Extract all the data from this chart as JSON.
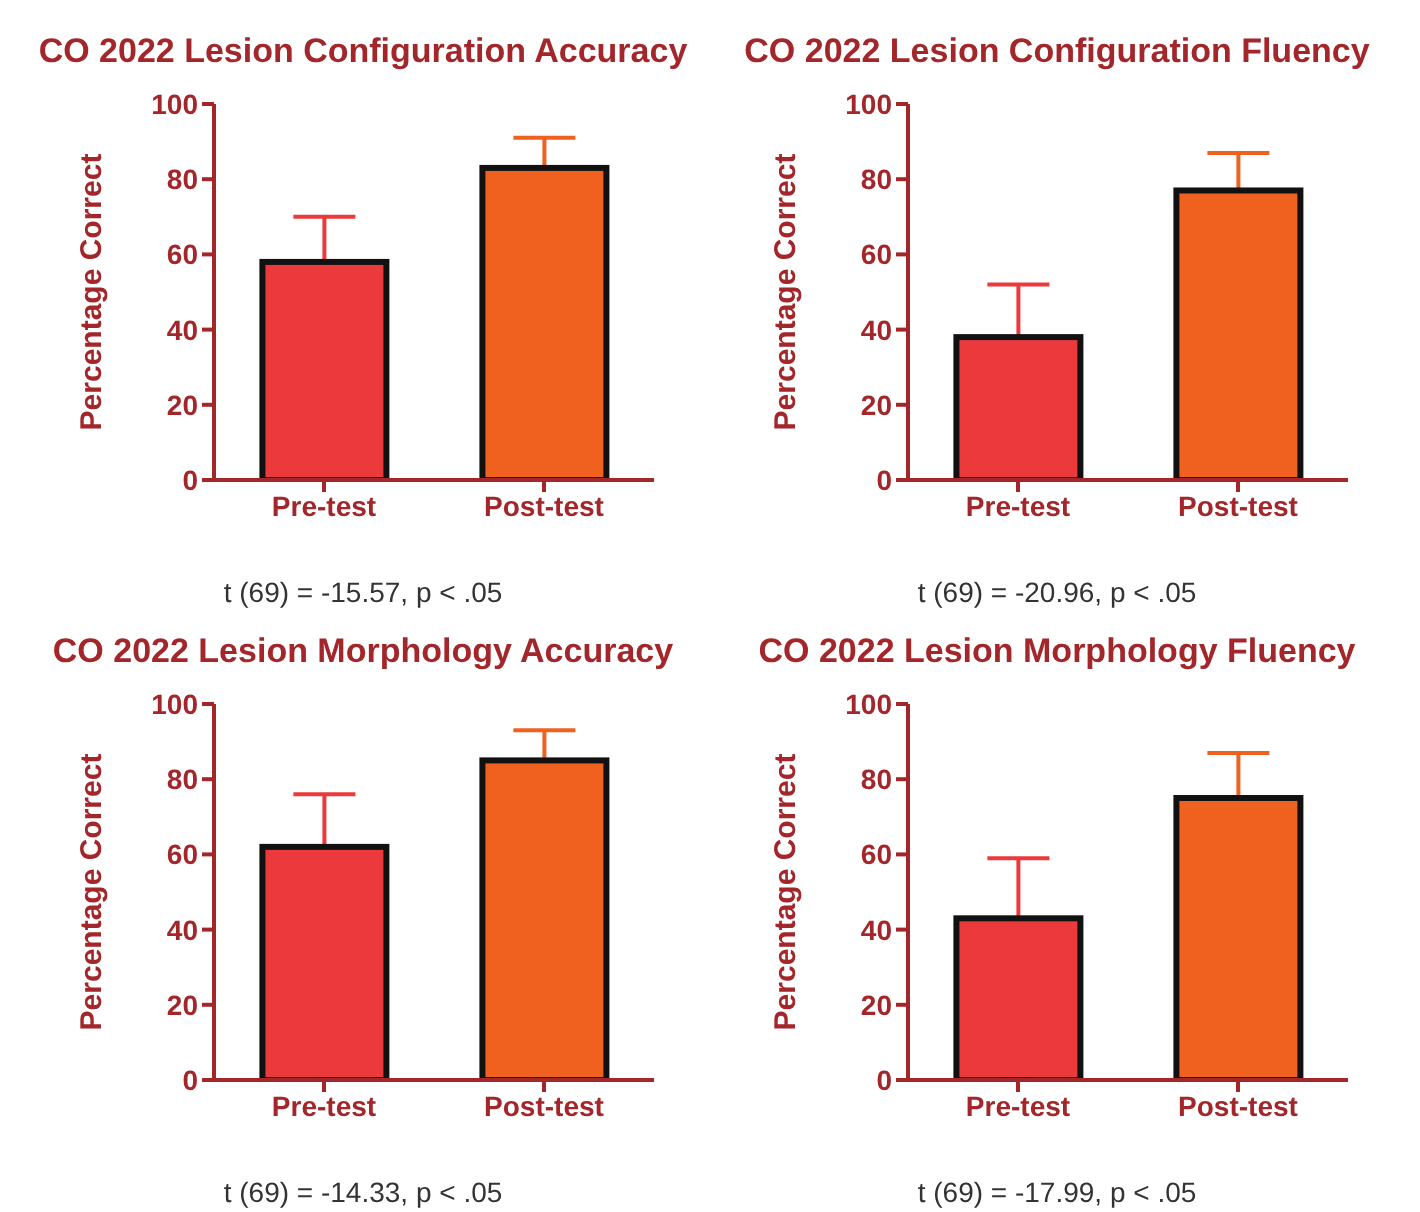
{
  "chart_data": [
    {
      "type": "bar",
      "title": "CO 2022 Lesion Configuration Accuracy",
      "ylabel": "Percentage  Correct",
      "categories": [
        "Pre-test",
        "Post-test"
      ],
      "values": [
        58,
        83
      ],
      "colors": [
        "#ec3a3c",
        "#f0601e"
      ],
      "errors": [
        [
          58,
          70
        ],
        [
          83,
          91
        ]
      ],
      "ylim": [
        0,
        100
      ],
      "yticks": [
        0,
        20,
        40,
        60,
        80,
        100
      ],
      "grid": false,
      "annotations": [
        "t (69) = -15.57, p < .05"
      ]
    },
    {
      "type": "bar",
      "title": "CO 2022 Lesion Configuration Fluency",
      "ylabel": "Percentage  Correct",
      "categories": [
        "Pre-test",
        "Post-test"
      ],
      "values": [
        38,
        77
      ],
      "colors": [
        "#ec3a3c",
        "#f0601e"
      ],
      "errors": [
        [
          38,
          52
        ],
        [
          77,
          87
        ]
      ],
      "ylim": [
        0,
        100
      ],
      "yticks": [
        0,
        20,
        40,
        60,
        80,
        100
      ],
      "grid": false,
      "annotations": [
        "t (69) = -20.96, p < .05"
      ]
    },
    {
      "type": "bar",
      "title": "CO 2022 Lesion Morphology Accuracy",
      "ylabel": "Percentage  Correct",
      "categories": [
        "Pre-test",
        "Post-test"
      ],
      "values": [
        62,
        85
      ],
      "colors": [
        "#ec3a3c",
        "#f0601e"
      ],
      "errors": [
        [
          62,
          76
        ],
        [
          85,
          93
        ]
      ],
      "ylim": [
        0,
        100
      ],
      "yticks": [
        0,
        20,
        40,
        60,
        80,
        100
      ],
      "grid": false,
      "annotations": [
        "t (69) = -14.33, p < .05"
      ]
    },
    {
      "type": "bar",
      "title": "CO 2022 Lesion Morphology Fluency",
      "ylabel": "Percentage  Correct",
      "categories": [
        "Pre-test",
        "Post-test"
      ],
      "values": [
        43,
        75
      ],
      "colors": [
        "#ec3a3c",
        "#f0601e"
      ],
      "errors": [
        [
          43,
          59
        ],
        [
          75,
          87
        ]
      ],
      "ylim": [
        0,
        100
      ],
      "yticks": [
        0,
        20,
        40,
        60,
        80,
        100
      ],
      "grid": false,
      "annotations": [
        "t (69) = -17.99, p < .05"
      ]
    }
  ]
}
